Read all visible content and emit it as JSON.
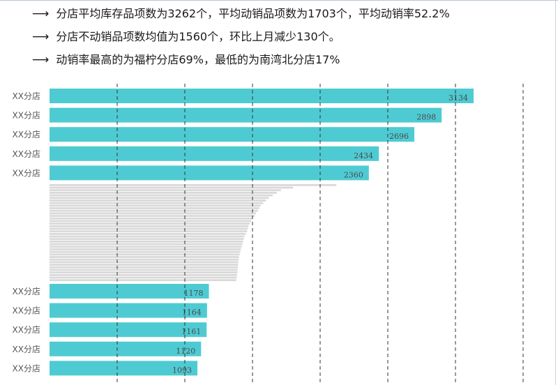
{
  "summary": {
    "bullets": [
      "分店平均库存品项数为3262个，平均动销品项数为1703个，平均动销率52.2%",
      "分店不动销品项数均值为1560个，环比上月减少130个。",
      "动销率最高的为福柠分店69%，最低的为南湾北分店17%"
    ],
    "arrow_icon": "long-right-arrow-icon"
  },
  "colors": {
    "bar": "#4ecbd2",
    "filler": "#d9d9d9",
    "grid": "#333333"
  },
  "chart_data": {
    "type": "bar",
    "orientation": "horizontal",
    "title": "",
    "xlim": [
      0,
      3500
    ],
    "grid": "vertical dashed",
    "top_bars": [
      {
        "label": "XX分店",
        "value": 3134
      },
      {
        "label": "XX分店",
        "value": 2898
      },
      {
        "label": "XX分店",
        "value": 2696
      },
      {
        "label": "XX分店",
        "value": 2434
      },
      {
        "label": "XX分店",
        "value": 2360
      }
    ],
    "bottom_bars": [
      {
        "label": "XX分店",
        "value": 1178
      },
      {
        "label": "XX分店",
        "value": 1164
      },
      {
        "label": "XX分店",
        "value": 1161
      },
      {
        "label": "XX分店",
        "value": 1120
      },
      {
        "label": "XX分店",
        "value": 1093
      }
    ],
    "middle_filler_values": [
      2120,
      1800,
      1710,
      1680,
      1650,
      1620,
      1600,
      1580,
      1560,
      1550,
      1540,
      1525,
      1515,
      1500,
      1490,
      1480,
      1470,
      1465,
      1460,
      1450,
      1440,
      1435,
      1430,
      1425,
      1420,
      1415,
      1410,
      1405,
      1400,
      1398,
      1396,
      1394,
      1392,
      1390,
      1388,
      1386,
      1384,
      1380
    ]
  }
}
